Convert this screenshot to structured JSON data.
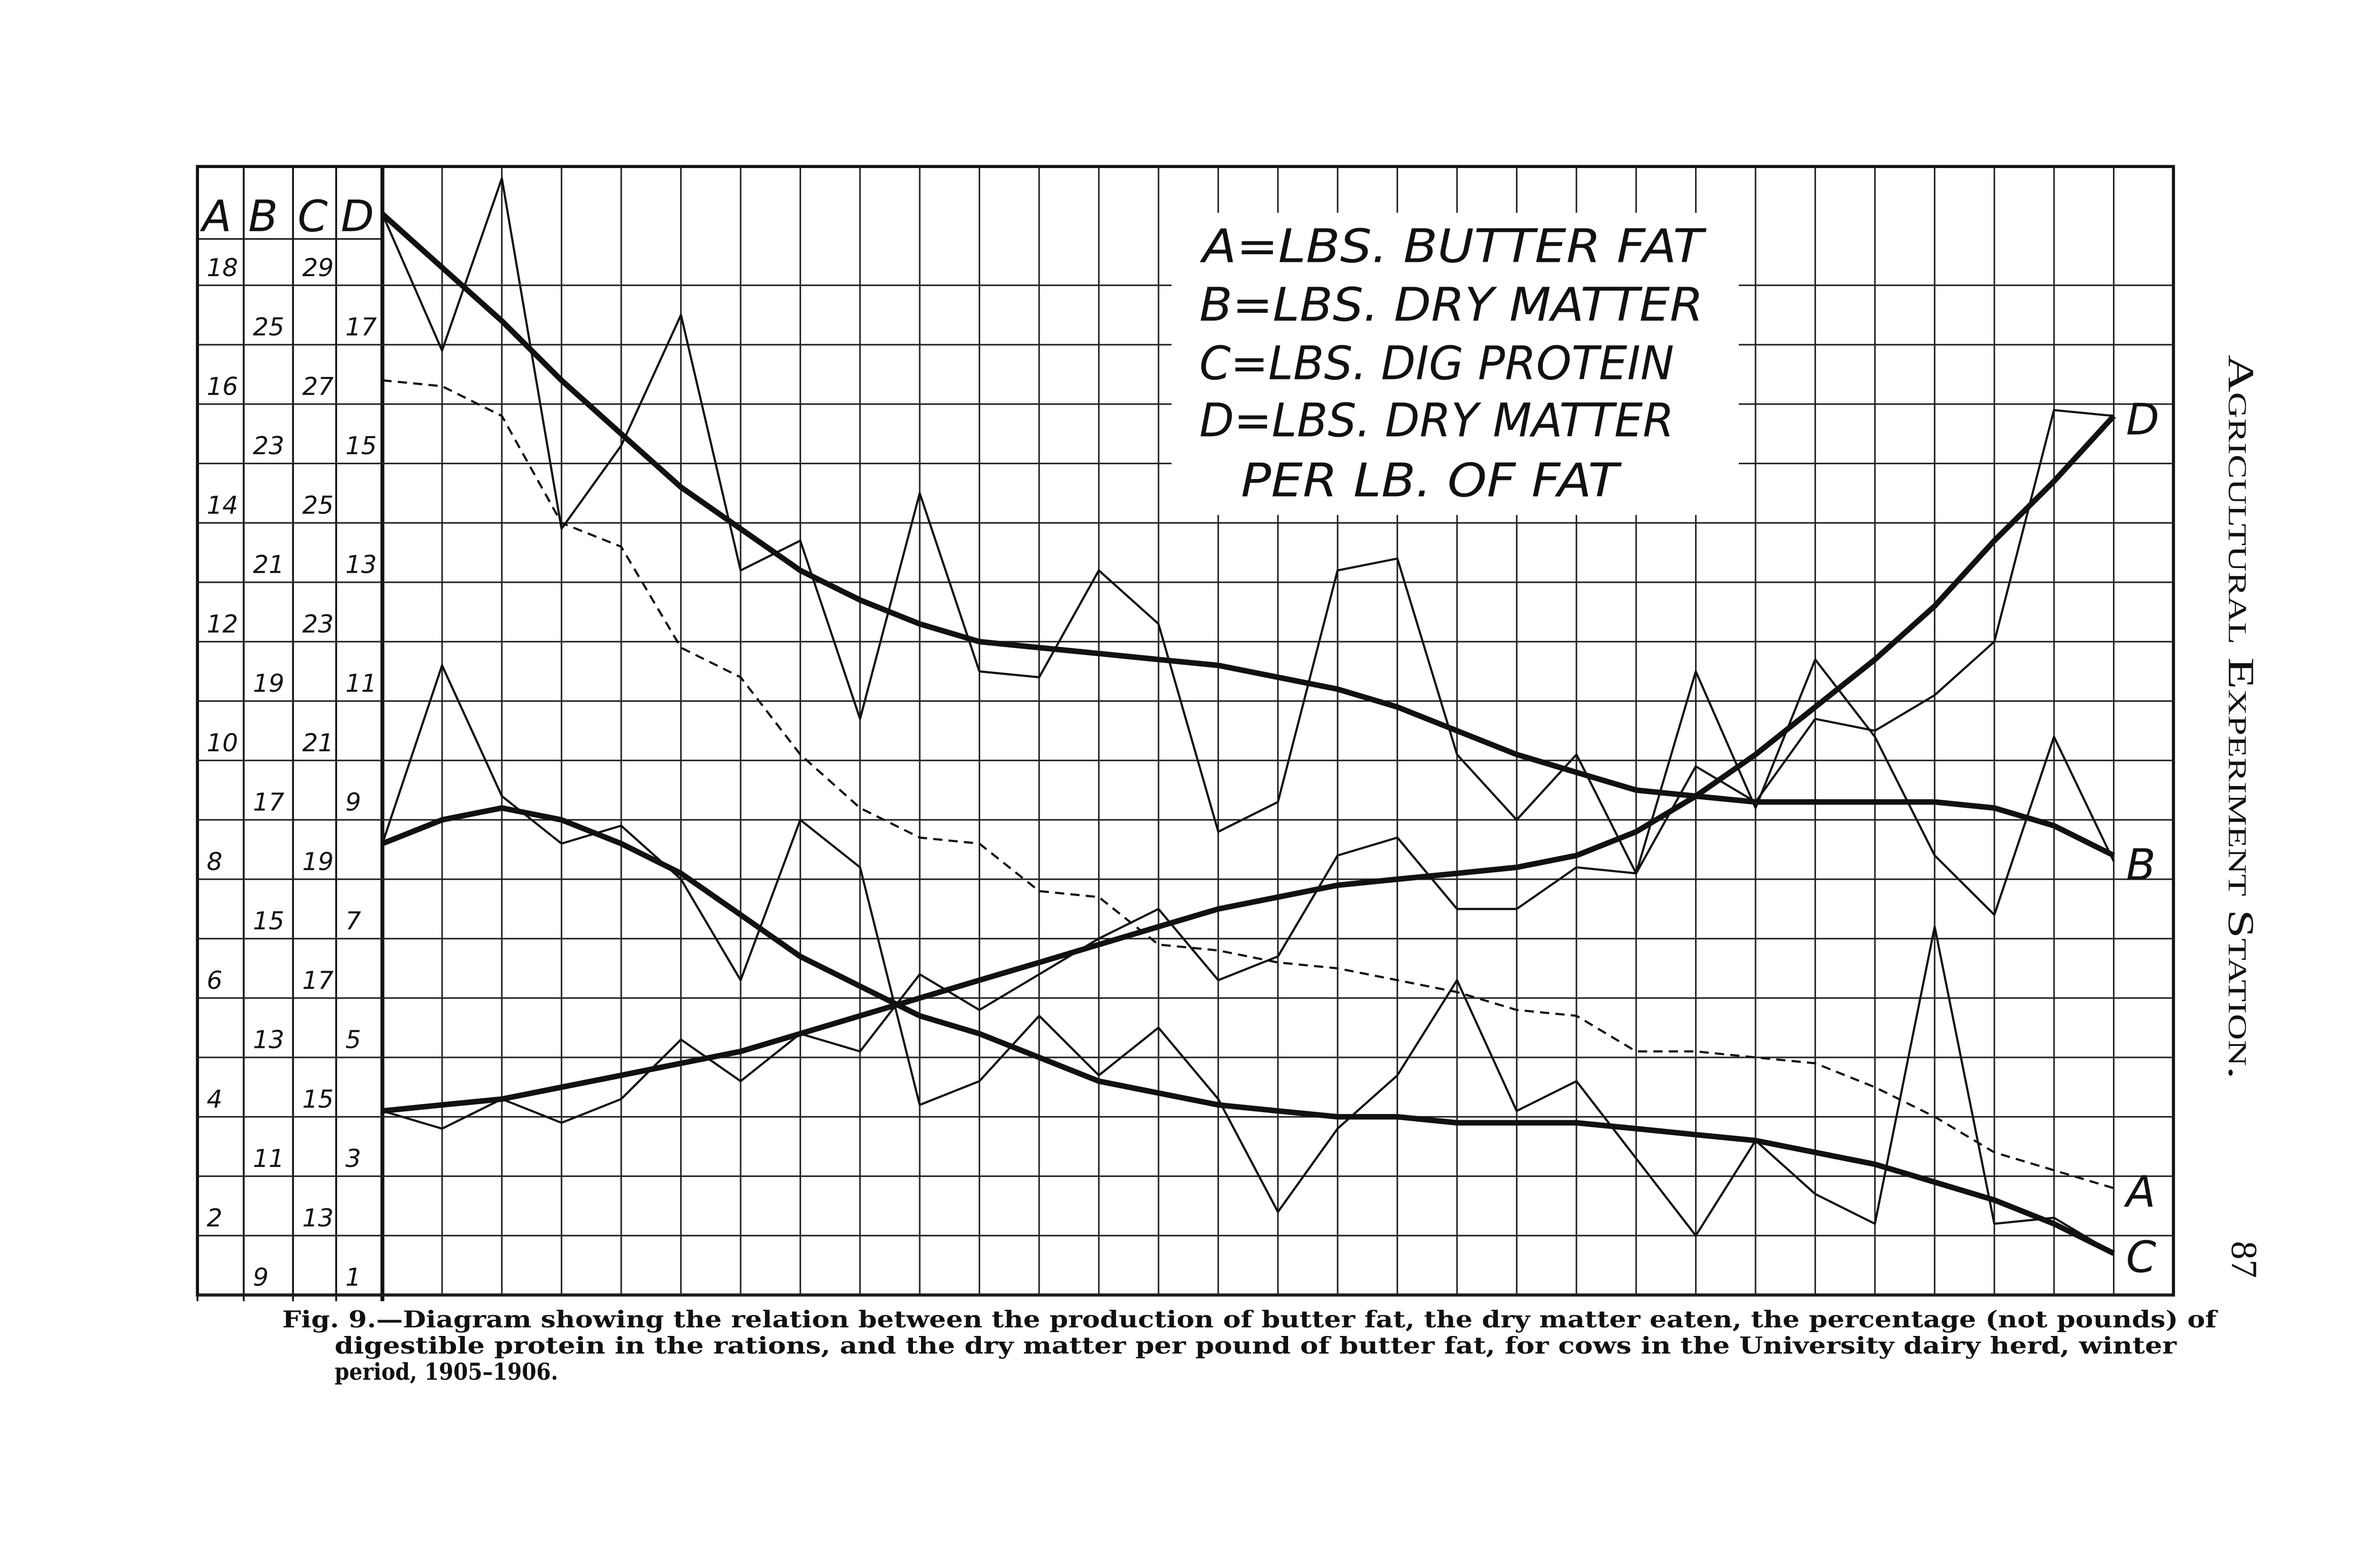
{
  "chart_data": {
    "type": "line",
    "axes": [
      {
        "label": "A",
        "ylim": [
          1,
          20
        ],
        "yticks": [
          2,
          4,
          6,
          8,
          10,
          12,
          14,
          16,
          18
        ]
      },
      {
        "label": "B",
        "ylim": [
          9,
          28
        ],
        "yticks": [
          9,
          11,
          13,
          15,
          17,
          19,
          21,
          23,
          25
        ]
      },
      {
        "label": "C",
        "ylim": [
          12,
          31
        ],
        "yticks": [
          13,
          15,
          17,
          19,
          21,
          23,
          25,
          27,
          29
        ]
      },
      {
        "label": "D",
        "ylim": [
          1,
          20
        ],
        "yticks": [
          1,
          3,
          5,
          7,
          9,
          11,
          13,
          15,
          17
        ]
      }
    ],
    "categories": [
      null,
      null,
      null,
      null,
      null,
      null,
      null,
      null,
      null,
      null,
      null,
      null,
      null,
      null,
      null,
      null,
      null,
      null,
      null,
      null,
      null,
      null,
      null,
      null,
      null,
      null,
      null,
      null,
      null,
      null
    ],
    "grid": true,
    "legend_lines": [
      "A=LBS. BUTTER FAT",
      "B=LBS. DRY MATTER",
      "C=LBS. DIG PROTEIN",
      "D=LBS. DRY MATTER",
      "PER LB. OF FAT"
    ],
    "series": [
      {
        "name": "A",
        "axis": 0,
        "color": "#111111",
        "dashed": true,
        "values": [
          16.4,
          16.3,
          15.8,
          14.0,
          13.6,
          11.9,
          11.4,
          10.1,
          9.2,
          8.7,
          8.6,
          7.8,
          7.7,
          6.9,
          6.8,
          6.6,
          6.5,
          6.3,
          6.1,
          5.8,
          5.7,
          5.1,
          5.1,
          5.0,
          4.9,
          4.5,
          4.0,
          3.4,
          3.1,
          2.8
        ]
      },
      {
        "name": "B",
        "axis": 1,
        "color": "#111111",
        "dashed": false,
        "values": [
          27.2,
          24.9,
          27.8,
          21.9,
          23.3,
          25.5,
          21.2,
          21.7,
          18.7,
          22.5,
          19.5,
          19.4,
          21.2,
          20.3,
          16.8,
          17.3,
          21.2,
          21.4,
          18.1,
          17.0,
          18.1,
          16.1,
          19.5,
          17.2,
          19.7,
          18.4,
          16.4,
          15.4,
          18.4,
          16.3
        ],
        "trend": [
          27.2,
          26.3,
          25.4,
          24.4,
          23.5,
          22.6,
          21.9,
          21.2,
          20.7,
          20.3,
          20.0,
          19.9,
          19.8,
          19.7,
          19.6,
          19.4,
          19.2,
          18.9,
          18.5,
          18.1,
          17.8,
          17.5,
          17.4,
          17.3,
          17.3,
          17.3,
          17.3,
          17.2,
          16.9,
          16.4
        ]
      },
      {
        "name": "C",
        "axis": 2,
        "color": "#111111",
        "dashed": false,
        "values": [
          19.6,
          22.6,
          20.4,
          19.6,
          19.9,
          19.0,
          17.3,
          20.0,
          19.2,
          15.2,
          15.6,
          16.7,
          15.7,
          16.5,
          15.3,
          13.4,
          14.8,
          15.7,
          17.3,
          15.1,
          15.6,
          14.3,
          13.0,
          14.6,
          13.7,
          13.2,
          18.2,
          13.2,
          13.3,
          12.7
        ],
        "trend": [
          19.6,
          20.0,
          20.2,
          20.0,
          19.6,
          19.1,
          18.4,
          17.7,
          17.2,
          16.7,
          16.4,
          16.0,
          15.6,
          15.4,
          15.2,
          15.1,
          15.0,
          15.0,
          14.9,
          14.9,
          14.9,
          14.8,
          14.7,
          14.6,
          14.4,
          14.2,
          13.9,
          13.6,
          13.2,
          12.7
        ]
      },
      {
        "name": "D",
        "axis": 3,
        "color": "#111111",
        "dashed": false,
        "values": [
          4.1,
          3.8,
          4.3,
          3.9,
          4.3,
          5.3,
          4.6,
          5.4,
          5.1,
          6.4,
          5.8,
          6.4,
          7.0,
          7.5,
          6.3,
          6.7,
          8.4,
          8.7,
          7.5,
          7.5,
          8.2,
          8.1,
          9.9,
          9.3,
          10.7,
          10.5,
          11.1,
          12.0,
          15.9,
          15.8
        ],
        "trend": [
          4.1,
          4.2,
          4.3,
          4.5,
          4.7,
          4.9,
          5.1,
          5.4,
          5.7,
          6.0,
          6.3,
          6.6,
          6.9,
          7.2,
          7.5,
          7.7,
          7.9,
          8.0,
          8.1,
          8.2,
          8.4,
          8.8,
          9.4,
          10.1,
          10.9,
          11.7,
          12.6,
          13.7,
          14.7,
          15.8
        ]
      }
    ],
    "caption_lines": [
      "Fig. 9.—Diagram showing the relation between the production of butter fat, the dry matter eaten, the percentage (not pounds) of",
      "digestible protein in the rations, and the dry matter per pound of butter fat, for cows in the University dairy herd, winter",
      "period, 1905–1906."
    ]
  },
  "page": {
    "running_head": "Agricultural Experiment Station.",
    "page_number": 87
  }
}
